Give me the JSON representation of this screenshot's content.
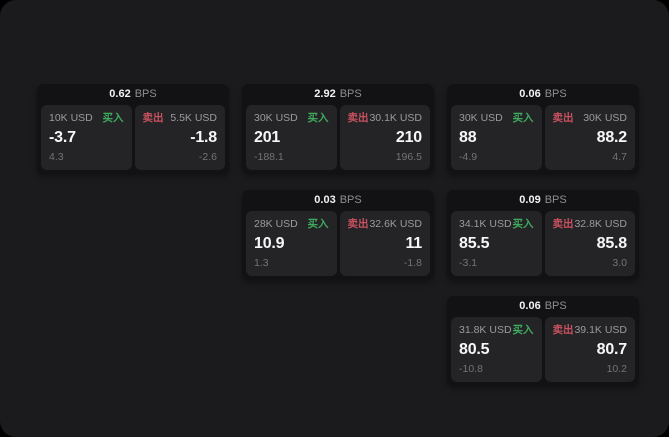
{
  "labels": {
    "bps_unit": "BPS",
    "buy": "买入",
    "sell": "卖出"
  },
  "colors": {
    "buy-green": "#3fa95e",
    "sell-red": "#c8515f",
    "muted": "#8e8e92"
  },
  "cards": [
    {
      "bps": "0.62",
      "buy": {
        "size": "10K USD",
        "value": "-3.7",
        "sub": "4.3"
      },
      "sell": {
        "size": "5.5K USD",
        "value": "-1.8",
        "sub": "-2.6"
      }
    },
    {
      "bps": "2.92",
      "buy": {
        "size": "30K USD",
        "value": "201",
        "sub": "-188.1"
      },
      "sell": {
        "size": "30.1K USD",
        "value": "210",
        "sub": "196.5"
      }
    },
    {
      "bps": "0.06",
      "buy": {
        "size": "30K USD",
        "value": "88",
        "sub": "-4.9"
      },
      "sell": {
        "size": "30K USD",
        "value": "88.2",
        "sub": "4.7"
      }
    },
    {
      "bps": "0.03",
      "buy": {
        "size": "28K USD",
        "value": "10.9",
        "sub": "1.3"
      },
      "sell": {
        "size": "32.6K USD",
        "value": "11",
        "sub": "-1.8"
      }
    },
    {
      "bps": "0.09",
      "buy": {
        "size": "34.1K USD",
        "value": "85.5",
        "sub": "-3.1"
      },
      "sell": {
        "size": "32.8K USD",
        "value": "85.8",
        "sub": "3.0"
      }
    },
    {
      "bps": "0.06",
      "buy": {
        "size": "31.8K USD",
        "value": "80.5",
        "sub": "-10.8"
      },
      "sell": {
        "size": "39.1K USD",
        "value": "80.7",
        "sub": "10.2"
      }
    }
  ]
}
